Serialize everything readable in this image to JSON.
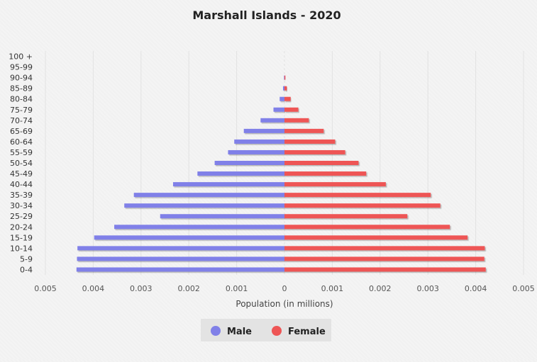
{
  "chart_data": {
    "type": "bar",
    "orientation": "horizontal-population-pyramid",
    "title": "Marshall Islands - 2020",
    "xlabel": "Population (in millions)",
    "ylabel": "",
    "xlim": [
      -0.005,
      0.005
    ],
    "x_ticks": [
      "0.005",
      "0.004",
      "0.003",
      "0.002",
      "0.001",
      "0",
      "0.001",
      "0.002",
      "0.003",
      "0.004",
      "0.005"
    ],
    "categories": [
      "0-4",
      "5-9",
      "10-14",
      "15-19",
      "20-24",
      "25-29",
      "30-34",
      "35-39",
      "40-44",
      "45-49",
      "50-54",
      "55-59",
      "60-64",
      "65-69",
      "70-74",
      "75-79",
      "80-84",
      "85-89",
      "90-94",
      "95-99",
      "100 +"
    ],
    "series": [
      {
        "name": "Male",
        "color": "#8080e8",
        "values": [
          0.00435,
          0.00434,
          0.00433,
          0.00398,
          0.00356,
          0.0026,
          0.00335,
          0.00315,
          0.00233,
          0.00182,
          0.00146,
          0.00118,
          0.00105,
          0.00085,
          0.0005,
          0.00023,
          0.0001,
          3e-05,
          1e-05,
          0.0,
          0.0
        ]
      },
      {
        "name": "Female",
        "color": "#ee5555",
        "values": [
          0.00421,
          0.00418,
          0.00419,
          0.00383,
          0.00346,
          0.00257,
          0.00326,
          0.00306,
          0.00212,
          0.00171,
          0.00155,
          0.00127,
          0.00106,
          0.00082,
          0.00051,
          0.00029,
          0.00013,
          5e-05,
          2e-05,
          0.0,
          0.0
        ]
      }
    ],
    "grid": true,
    "legend": "bottom-center"
  }
}
